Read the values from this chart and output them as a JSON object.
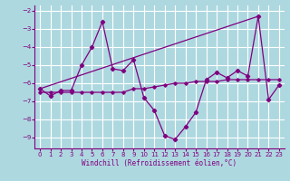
{
  "xlabel": "Windchill (Refroidissement éolien,°C)",
  "bg_color": "#aed8e0",
  "line_color": "#800080",
  "grid_color": "#c8e8ee",
  "ylim": [
    -9.6,
    -1.7
  ],
  "xlim": [
    -0.5,
    23.5
  ],
  "yticks": [
    -2,
    -3,
    -4,
    -5,
    -6,
    -7,
    -8,
    -9
  ],
  "xticks": [
    0,
    1,
    2,
    3,
    4,
    5,
    6,
    7,
    8,
    9,
    10,
    11,
    12,
    13,
    14,
    15,
    16,
    17,
    18,
    19,
    20,
    21,
    22,
    23
  ],
  "series1": [
    -6.3,
    -6.7,
    -6.4,
    -6.4,
    -5.0,
    -4.0,
    -2.6,
    -5.2,
    -5.3,
    -4.7,
    -6.8,
    -7.5,
    -8.9,
    -9.1,
    -8.4,
    -7.6,
    -5.8,
    -5.4,
    -5.7,
    -5.3,
    -5.6,
    -2.3,
    -6.9,
    -6.1
  ],
  "series2": [
    -6.5,
    -6.5,
    -6.5,
    -6.5,
    -6.5,
    -6.5,
    -6.5,
    -6.5,
    -6.5,
    -6.3,
    -6.3,
    -6.2,
    -6.1,
    -6.0,
    -6.0,
    -5.9,
    -5.9,
    -5.9,
    -5.8,
    -5.8,
    -5.8,
    -5.8,
    -5.8,
    -5.8
  ],
  "series3_x": [
    0,
    21
  ],
  "series3_y": [
    -6.3,
    -2.3
  ],
  "series2_markers": [
    0,
    1,
    2,
    3,
    4,
    5,
    6,
    7,
    8,
    9,
    10,
    11,
    12,
    13,
    14,
    15,
    16,
    17,
    18,
    19,
    20,
    21,
    22,
    23
  ]
}
